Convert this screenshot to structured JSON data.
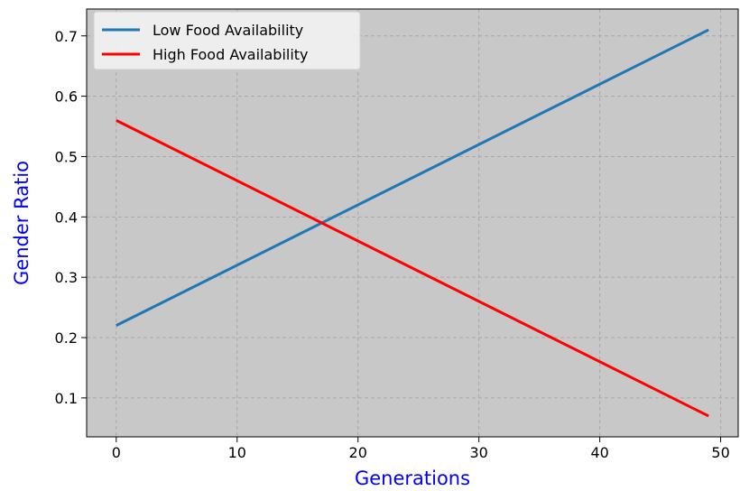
{
  "chart_data": {
    "type": "line",
    "title": "",
    "xlabel": "Generations",
    "ylabel": "Gender Ratio",
    "xlim": [
      -2.45,
      51.45
    ],
    "ylim": [
      0.0355,
      0.7445
    ],
    "xticks": [
      0,
      10,
      20,
      30,
      40,
      50
    ],
    "yticks": [
      0.1,
      0.2,
      0.3,
      0.4,
      0.5,
      0.6,
      0.7
    ],
    "xtick_labels": [
      "0",
      "10",
      "20",
      "30",
      "40",
      "50"
    ],
    "ytick_labels": [
      "0.1",
      "0.2",
      "0.3",
      "0.4",
      "0.5",
      "0.6",
      "0.7"
    ],
    "grid": true,
    "legend_position": "top-left",
    "background_color": "#c8c8c8",
    "label_color": "#0000ff",
    "series": [
      {
        "name": "Low Food Availability",
        "color": "#1f77b4",
        "x": [
          0,
          49
        ],
        "y": [
          0.22,
          0.71
        ]
      },
      {
        "name": "High Food Availability",
        "color": "#ff0000",
        "x": [
          0,
          49
        ],
        "y": [
          0.56,
          0.07
        ]
      }
    ]
  }
}
